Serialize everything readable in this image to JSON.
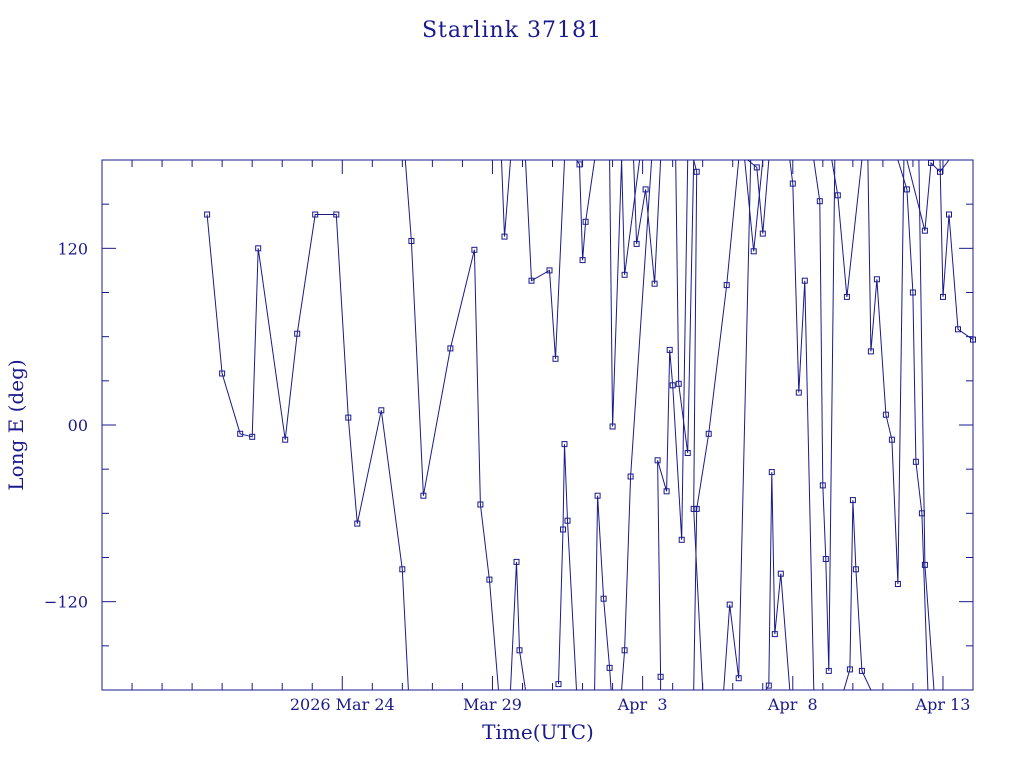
{
  "chart_data": {
    "type": "line",
    "title": "Starlink 37181",
    "xlabel": "Time(UTC)",
    "ylabel": "Long E (deg)",
    "ylim": [
      -180,
      180
    ],
    "xlim": [
      16,
      45
    ],
    "x_unit": "days (March 2026; values > 31 are April)",
    "y_ticks": [
      {
        "v": 120,
        "label": "120"
      },
      {
        "v": 0,
        "label": "00"
      },
      {
        "v": -120,
        "label": "−120"
      }
    ],
    "x_ticks": [
      {
        "v": 24,
        "label": "2026 Mar 24"
      },
      {
        "v": 29,
        "label": "Mar 29"
      },
      {
        "v": 34,
        "label": "Apr  3"
      },
      {
        "v": 39,
        "label": "Apr  8"
      },
      {
        "v": 44,
        "label": "Apr 13"
      }
    ],
    "color": "#1a1a8c",
    "segments": [
      [
        [
          19.5,
          143
        ],
        [
          20.0,
          35
        ],
        [
          20.6,
          -6
        ],
        [
          21.0,
          -8
        ],
        [
          21.2,
          120
        ],
        [
          22.1,
          -10
        ],
        [
          22.5,
          62
        ],
        [
          23.1,
          143
        ],
        [
          23.8,
          143
        ],
        [
          24.2,
          5
        ],
        [
          24.5,
          -67
        ],
        [
          25.3,
          10
        ],
        [
          26.0,
          -98
        ],
        [
          26.2,
          -180
        ]
      ],
      [
        [
          26.1,
          180
        ],
        [
          26.3,
          125
        ],
        [
          26.7,
          -48
        ],
        [
          27.6,
          52
        ],
        [
          28.4,
          119
        ],
        [
          28.6,
          -54
        ],
        [
          28.9,
          -105
        ],
        [
          29.2,
          -180
        ]
      ],
      [
        [
          29.3,
          180
        ],
        [
          29.4,
          128
        ],
        [
          29.6,
          180
        ]
      ],
      [
        [
          29.6,
          -180
        ],
        [
          29.8,
          -93
        ],
        [
          29.9,
          -153
        ],
        [
          30.1,
          -180
        ]
      ],
      [
        [
          30.1,
          180
        ],
        [
          30.3,
          98
        ],
        [
          30.9,
          105
        ],
        [
          31.1,
          45
        ],
        [
          31.4,
          180
        ]
      ],
      [
        [
          31.2,
          -176
        ],
        [
          31.35,
          -71
        ],
        [
          31.4,
          -13
        ],
        [
          31.5,
          -65
        ],
        [
          31.8,
          -180
        ]
      ],
      [
        [
          31.8,
          180
        ],
        [
          31.9,
          177
        ],
        [
          32.0,
          112
        ],
        [
          32.1,
          138
        ],
        [
          32.4,
          180
        ]
      ],
      [
        [
          32.4,
          -180
        ],
        [
          32.5,
          -48
        ],
        [
          32.7,
          -118
        ],
        [
          32.9,
          -165
        ],
        [
          32.95,
          -180
        ]
      ],
      [
        [
          32.9,
          180
        ],
        [
          33.0,
          -1
        ],
        [
          33.3,
          180
        ]
      ],
      [
        [
          33.3,
          180
        ],
        [
          33.4,
          102
        ],
        [
          33.9,
          180
        ]
      ],
      [
        [
          33.3,
          -180
        ],
        [
          33.4,
          -153
        ],
        [
          33.6,
          -35
        ],
        [
          34.3,
          180
        ]
      ],
      [
        [
          33.7,
          180
        ],
        [
          33.8,
          123
        ],
        [
          34.1,
          160
        ],
        [
          34.4,
          96
        ],
        [
          34.6,
          180
        ]
      ],
      [
        [
          34.6,
          -180
        ],
        [
          34.6,
          -171
        ],
        [
          34.5,
          -24
        ],
        [
          34.8,
          -45
        ],
        [
          34.9,
          51
        ],
        [
          35.0,
          27
        ],
        [
          35.3,
          -78
        ],
        [
          35.5,
          180
        ]
      ],
      [
        [
          35.1,
          180
        ],
        [
          35.2,
          28
        ],
        [
          35.5,
          -19
        ],
        [
          35.7,
          180
        ]
      ],
      [
        [
          35.7,
          180
        ],
        [
          35.8,
          172
        ],
        [
          35.7,
          -57
        ],
        [
          36.0,
          -180
        ]
      ],
      [
        [
          35.7,
          -180
        ],
        [
          35.8,
          -57
        ],
        [
          36.2,
          -6
        ],
        [
          36.8,
          95
        ],
        [
          37.2,
          180
        ]
      ],
      [
        [
          36.7,
          -180
        ],
        [
          36.9,
          -122
        ],
        [
          37.2,
          -172
        ],
        [
          37.6,
          180
        ]
      ],
      [
        [
          37.5,
          180
        ],
        [
          37.8,
          175
        ],
        [
          38.0,
          130
        ],
        [
          38.2,
          180
        ]
      ],
      [
        [
          37.4,
          180
        ],
        [
          37.7,
          118
        ],
        [
          38.0,
          180
        ]
      ],
      [
        [
          38.1,
          -180
        ],
        [
          38.2,
          -177
        ],
        [
          38.3,
          -32
        ],
        [
          38.4,
          -142
        ],
        [
          38.6,
          -101
        ],
        [
          38.9,
          -180
        ]
      ],
      [
        [
          38.9,
          180
        ],
        [
          39.0,
          164
        ],
        [
          39.2,
          22
        ],
        [
          39.4,
          98
        ],
        [
          39.7,
          -180
        ]
      ],
      [
        [
          39.7,
          180
        ],
        [
          39.9,
          152
        ],
        [
          40.0,
          -41
        ],
        [
          40.1,
          -91
        ],
        [
          40.2,
          -167
        ],
        [
          40.4,
          180
        ]
      ],
      [
        [
          40.3,
          180
        ],
        [
          40.5,
          156
        ],
        [
          40.8,
          87
        ],
        [
          41.3,
          180
        ]
      ],
      [
        [
          40.7,
          -180
        ],
        [
          40.9,
          -166
        ],
        [
          41.0,
          -51
        ],
        [
          41.1,
          -98
        ],
        [
          41.3,
          -167
        ],
        [
          41.6,
          -180
        ]
      ],
      [
        [
          41.5,
          180
        ],
        [
          41.6,
          50
        ],
        [
          41.8,
          99
        ],
        [
          42.1,
          7
        ],
        [
          42.3,
          -10
        ],
        [
          42.5,
          -108
        ],
        [
          42.7,
          180
        ]
      ],
      [
        [
          42.5,
          180
        ],
        [
          42.8,
          160
        ],
        [
          43.0,
          90
        ],
        [
          43.1,
          -25
        ],
        [
          43.3,
          -60
        ],
        [
          43.5,
          -180
        ]
      ],
      [
        [
          42.8,
          180
        ],
        [
          43.4,
          132
        ],
        [
          43.6,
          178
        ],
        [
          43.9,
          172
        ],
        [
          44.2,
          180
        ]
      ],
      [
        [
          43.2,
          180
        ],
        [
          43.4,
          -95
        ],
        [
          43.7,
          -180
        ]
      ],
      [
        [
          43.9,
          180
        ],
        [
          44.0,
          87
        ],
        [
          44.2,
          143
        ],
        [
          44.5,
          65
        ],
        [
          45.0,
          58
        ]
      ]
    ]
  }
}
